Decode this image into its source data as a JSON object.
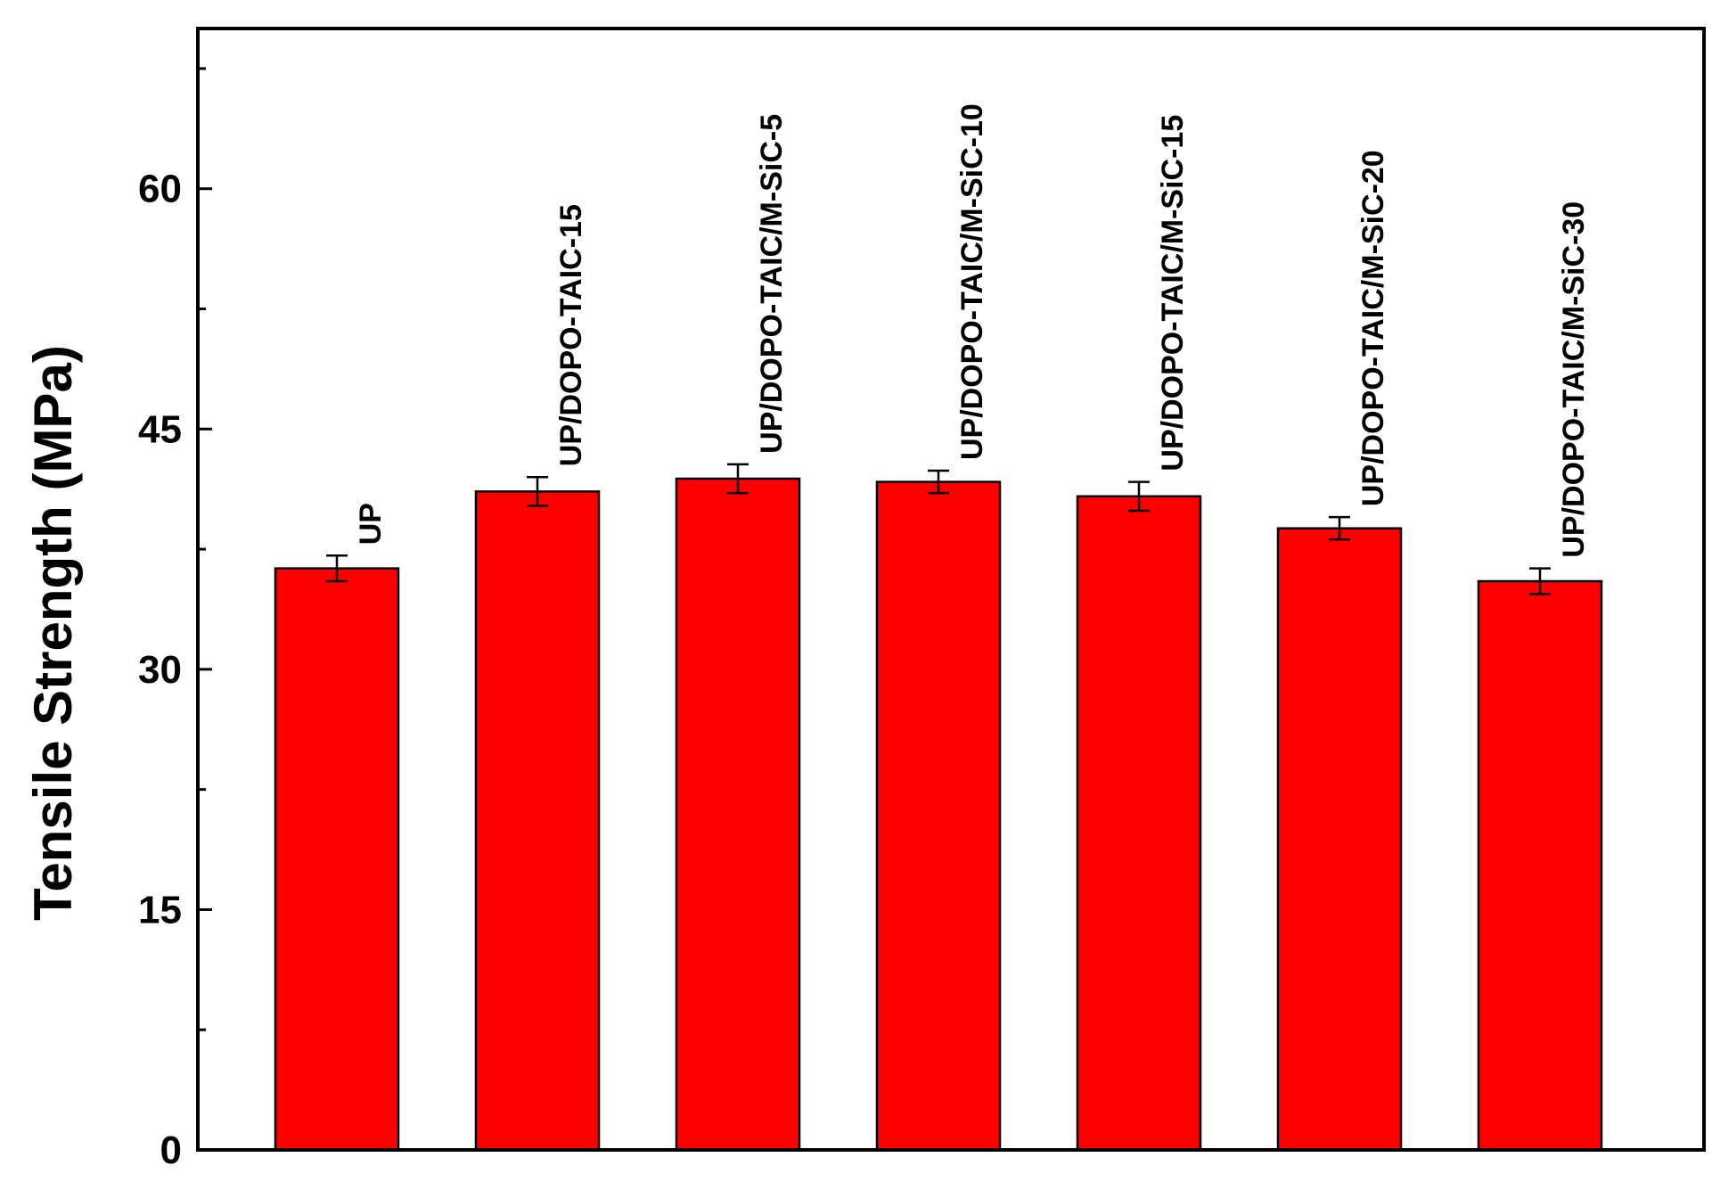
{
  "chart_data": {
    "type": "bar",
    "title": "",
    "xlabel": "",
    "ylabel": "Tensile Strength (MPa)",
    "ylim": [
      0,
      70
    ],
    "yticks": [
      0,
      15,
      30,
      45,
      60
    ],
    "y_minor_step": 7.5,
    "grid": false,
    "legend": "none",
    "categories": [
      "UP",
      "UP/DOPO-TAIC-15",
      "UP/DOPO-TAIC/M-SiC-5",
      "UP/DOPO-TAIC/M-SiC-10",
      "UP/DOPO-TAIC/M-SiC-15",
      "UP/DOPO-TAIC/M-SiC-20",
      "UP/DOPO-TAIC/M-SiC-30"
    ],
    "values": [
      36.3,
      41.1,
      41.9,
      41.7,
      40.8,
      38.8,
      35.5
    ],
    "errors": [
      0.8,
      0.9,
      0.9,
      0.7,
      0.9,
      0.7,
      0.8
    ],
    "bar_color": "#ff0000",
    "edge_color": "#000000"
  }
}
